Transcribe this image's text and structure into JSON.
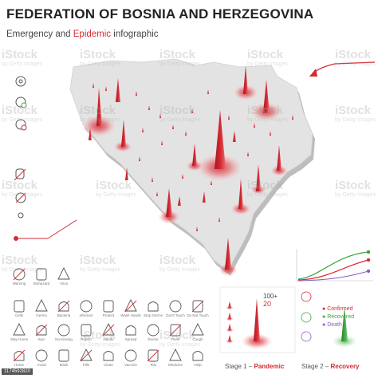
{
  "header": {
    "title": "FEDERATION OF BOSNIA AND HERZEGOVINA",
    "subtitle_pre": "Emergency and ",
    "subtitle_accent": "Epidemic",
    "subtitle_post": " infographic"
  },
  "watermark": {
    "text": "iStock",
    "credit": "by Getty Images"
  },
  "accent_color": "#d62b34",
  "map_color": "#e3e3e3",
  "stage_panel": {
    "count_top": "100+",
    "count_main": "20",
    "stage1_label": "Stage 1 – ",
    "stage1_bold": "Pandemic",
    "stage2_label": "Stage 2 – ",
    "stage2_bold": "Recovery"
  },
  "legend": {
    "items": [
      {
        "label": "Confirmed",
        "color": "#d62b34"
      },
      {
        "label": "Recovered",
        "color": "#3aa63a"
      },
      {
        "label": "Death",
        "color": "#8a5bc6"
      }
    ]
  },
  "icon_labels": [
    "Warning",
    "Biohazard",
    "Virus",
    "Cells",
    "Germs",
    "Bacteria",
    "Infection",
    "Protect",
    "Wash Hands",
    "Stop Germs",
    "Don't Touch",
    "Do Not Touch",
    "Stay Home",
    "Eye",
    "No Kissing",
    "Report",
    "Hands",
    "Spread",
    "Doctor",
    "Fever",
    "Cough",
    "Home",
    "Avoid",
    "Mask",
    "Pills",
    "Clean",
    "Vaccine",
    "Test",
    "Medicine",
    "Help",
    "Care",
    "Hospital",
    "Alert",
    "Tissue",
    "Target",
    "Fever Check",
    "Scientist",
    "Shield",
    "Shop",
    "Chart",
    "Meds"
  ],
  "image_id": "1174592820"
}
